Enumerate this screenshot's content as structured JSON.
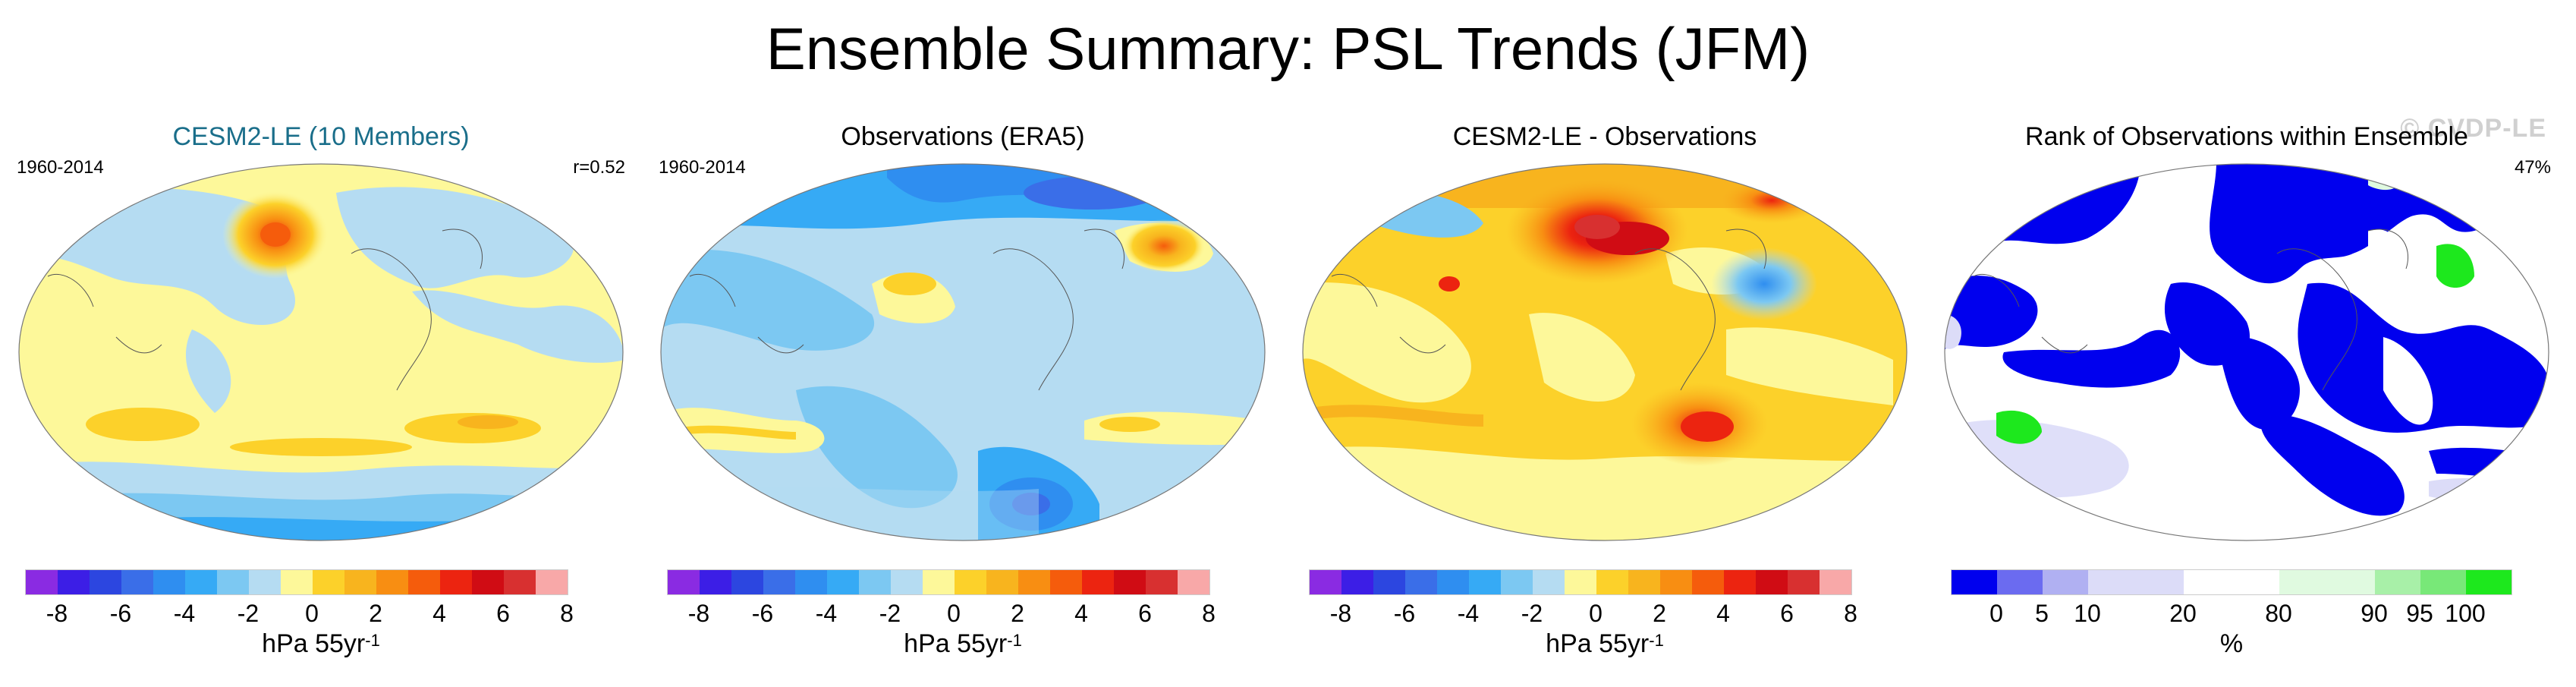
{
  "title": "Ensemble Summary: PSL Trends (JFM)",
  "watermark": "© CVDP-LE",
  "panels": [
    {
      "title": "CESM2-LE (10 Members)",
      "title_color": "#1a6e8a",
      "left_label": "1960-2014",
      "right_label": "r=0.52",
      "kind": "ensemble"
    },
    {
      "title": "Observations (ERA5)",
      "title_color": "#000000",
      "left_label": "1960-2014",
      "right_label": "",
      "kind": "obs"
    },
    {
      "title": "CESM2-LE - Observations",
      "title_color": "#000000",
      "left_label": "",
      "right_label": "",
      "kind": "diff"
    },
    {
      "title": "Rank of Observations within Ensemble",
      "title_color": "#000000",
      "left_label": "",
      "right_label": "47%",
      "kind": "rank"
    }
  ],
  "trend_colorbar": {
    "colors": [
      "#8a2be2",
      "#3c1ee6",
      "#2c46e0",
      "#3a6ee8",
      "#2f8ef0",
      "#36aaf5",
      "#7cc8f2",
      "#b5dcf2",
      "#fdf89a",
      "#fcd12a",
      "#f8b41e",
      "#f88e12",
      "#f55c0c",
      "#ec2410",
      "#d00c14",
      "#d83030",
      "#f8a8a8"
    ],
    "labels": [
      "-8",
      "-6",
      "-4",
      "-2",
      "0",
      "2",
      "4",
      "6",
      "8"
    ],
    "unit": "hPa 55yr",
    "unit_sup": "-1"
  },
  "rank_colorbar": {
    "colors": [
      "#0000ee",
      "#6b6bf0",
      "#b0b0f2",
      "#dcdcf8",
      "#ffffff",
      "#e0fae0",
      "#a8f0a8",
      "#78e878",
      "#1de81d"
    ],
    "labels": [
      "0",
      "5",
      "10",
      "20",
      "80",
      "90",
      "95",
      "100"
    ],
    "unit": "%"
  }
}
